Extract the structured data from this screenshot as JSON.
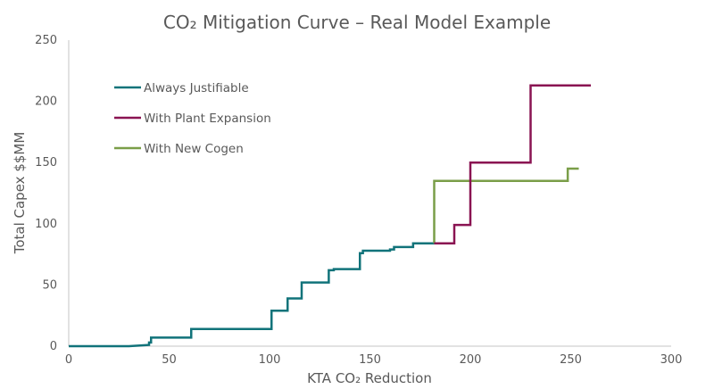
{
  "chart_data": {
    "type": "line",
    "step": true,
    "title": "CO₂ Mitigation Curve – Real Model Example",
    "xlabel": "KTA CO₂ Reduction",
    "ylabel": "Total Capex $$MM",
    "xlim": [
      0,
      300
    ],
    "ylim": [
      0,
      250
    ],
    "xticks": [
      0,
      50,
      100,
      150,
      200,
      250,
      300
    ],
    "yticks": [
      0,
      50,
      100,
      150,
      200,
      250
    ],
    "grid": false,
    "legend_position": "top-left",
    "series": [
      {
        "name": "Always Justifiable",
        "color": "#11737a",
        "points": [
          [
            0,
            0
          ],
          [
            30,
            0
          ],
          [
            40,
            1
          ],
          [
            40,
            3
          ],
          [
            41,
            3
          ],
          [
            41,
            7
          ],
          [
            61,
            7
          ],
          [
            61,
            14
          ],
          [
            101,
            14
          ],
          [
            101,
            29
          ],
          [
            109,
            29
          ],
          [
            109,
            39
          ],
          [
            116,
            39
          ],
          [
            116,
            52
          ],
          [
            129.5,
            52
          ],
          [
            129.5,
            62
          ],
          [
            132,
            62
          ],
          [
            132,
            63
          ],
          [
            145,
            63
          ],
          [
            145,
            76
          ],
          [
            146.5,
            76
          ],
          [
            146.5,
            78
          ],
          [
            160,
            78
          ],
          [
            160,
            79
          ],
          [
            162,
            79
          ],
          [
            162,
            81
          ],
          [
            171.5,
            81
          ],
          [
            171.5,
            84
          ],
          [
            182,
            84
          ]
        ]
      },
      {
        "name": "With Plant Expansion",
        "color": "#8a1452",
        "points": [
          [
            182,
            84
          ],
          [
            192,
            84
          ],
          [
            192,
            99
          ],
          [
            200,
            99
          ],
          [
            200,
            150
          ],
          [
            230,
            150
          ],
          [
            230,
            213
          ],
          [
            260,
            213
          ]
        ]
      },
      {
        "name": "With New Cogen",
        "color": "#7a9e48",
        "points": [
          [
            182,
            84
          ],
          [
            182,
            135
          ],
          [
            248.5,
            135
          ],
          [
            248.5,
            145
          ],
          [
            254,
            145
          ]
        ]
      }
    ]
  }
}
